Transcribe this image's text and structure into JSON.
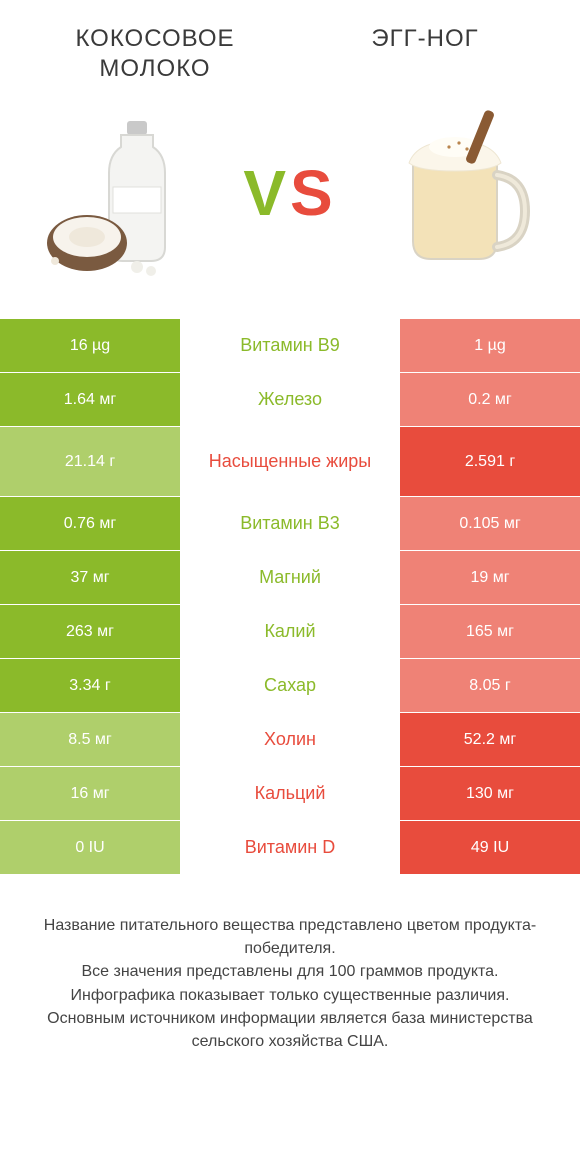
{
  "colors": {
    "winnerA": "#8bba2a",
    "loserA": "#afcf6b",
    "winnerB": "#e84c3d",
    "loserB": "#ef8276",
    "labelA": "#8bba2a",
    "labelB": "#e84c3d",
    "vsV": "#8bba2a",
    "vsS": "#e84c3d",
    "bg": "#ffffff",
    "text": "#333333"
  },
  "productA": {
    "title": "КОКОСОВОЕ МОЛОКО"
  },
  "productB": {
    "title": "ЭГГ-НОГ"
  },
  "rows": [
    {
      "label": "Витамин B9",
      "a": "16 µg",
      "b": "1 µg",
      "winner": "A",
      "tall": false
    },
    {
      "label": "Железо",
      "a": "1.64 мг",
      "b": "0.2 мг",
      "winner": "A",
      "tall": false
    },
    {
      "label": "Насыщенные жиры",
      "a": "21.14 г",
      "b": "2.591 г",
      "winner": "B",
      "tall": true
    },
    {
      "label": "Витамин B3",
      "a": "0.76 мг",
      "b": "0.105 мг",
      "winner": "A",
      "tall": false
    },
    {
      "label": "Магний",
      "a": "37 мг",
      "b": "19 мг",
      "winner": "A",
      "tall": false
    },
    {
      "label": "Калий",
      "a": "263 мг",
      "b": "165 мг",
      "winner": "A",
      "tall": false
    },
    {
      "label": "Сахар",
      "a": "3.34 г",
      "b": "8.05 г",
      "winner": "A",
      "tall": false
    },
    {
      "label": "Холин",
      "a": "8.5 мг",
      "b": "52.2 мг",
      "winner": "B",
      "tall": false
    },
    {
      "label": "Кальций",
      "a": "16 мг",
      "b": "130 мг",
      "winner": "B",
      "tall": false
    },
    {
      "label": "Витамин D",
      "a": "0 IU",
      "b": "49 IU",
      "winner": "B",
      "tall": false
    }
  ],
  "footnote": "Название питательного вещества представлено цветом продукта-победителя.\nВсе значения представлены для 100 граммов продукта.\nИнфографика показывает только существенные различия.\nОсновным источником информации является база министерства сельского хозяйства США."
}
